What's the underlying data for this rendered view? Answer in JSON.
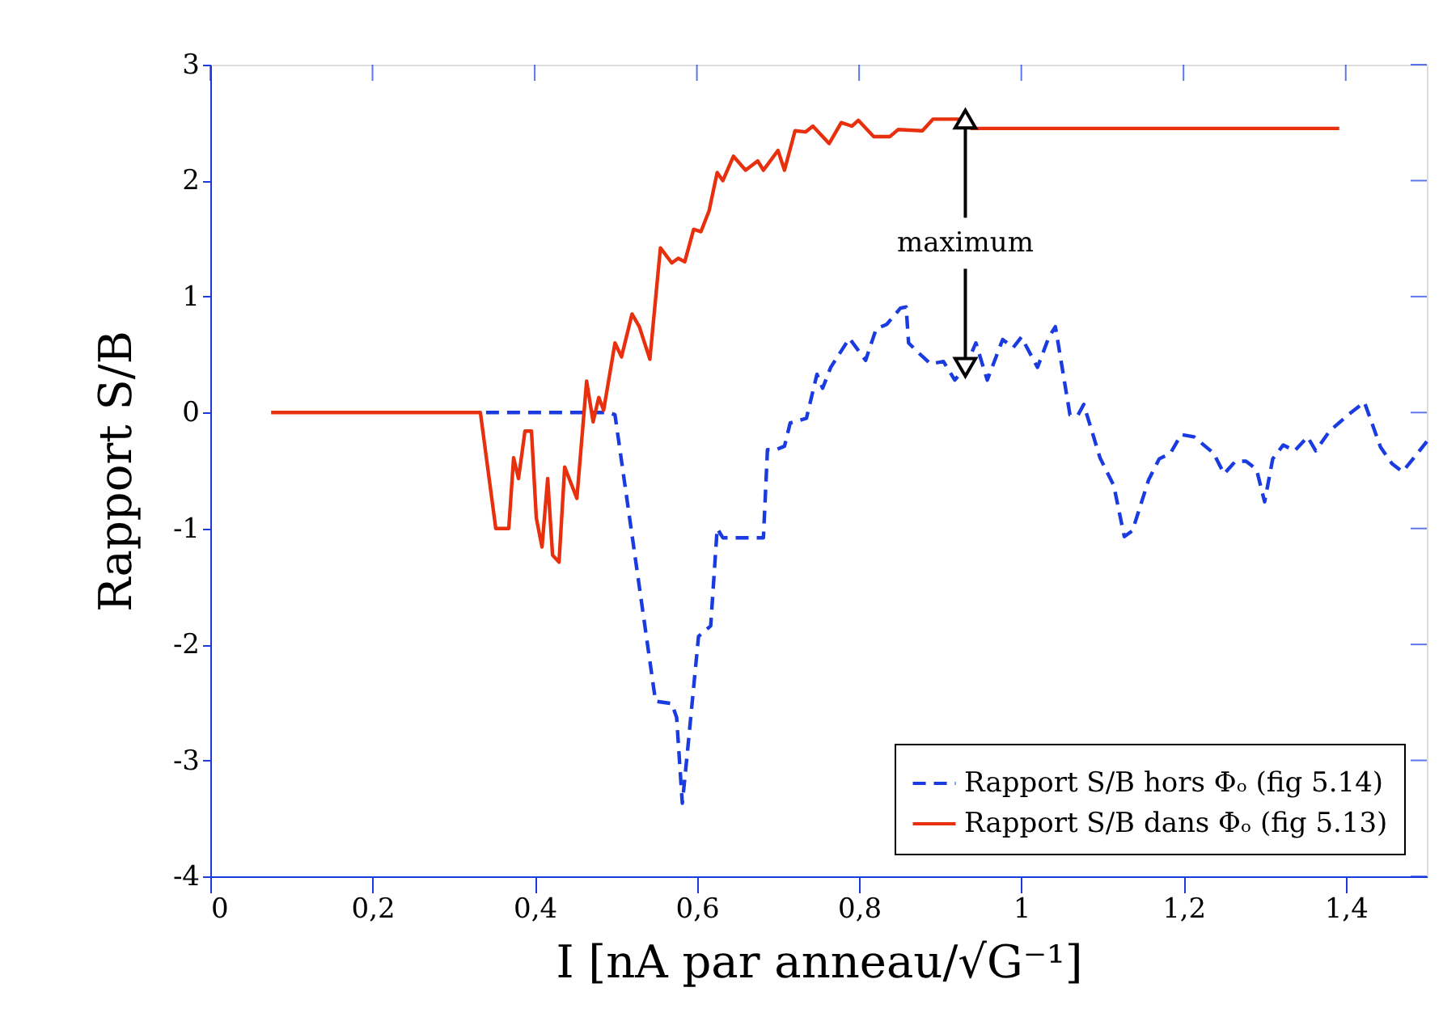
{
  "chart_data": {
    "type": "line",
    "xlabel": "I [nA par anneau/√G⁻¹]",
    "ylabel": "Rapport S/B",
    "xlim": [
      0,
      1.5
    ],
    "ylim": [
      -4,
      3
    ],
    "xticks": [
      0,
      {
        "value": 0.2,
        "label": "0,2"
      },
      {
        "value": 0.4,
        "label": "0,4"
      },
      {
        "value": 0.6,
        "label": "0,6"
      },
      {
        "value": 0.8,
        "label": "0,8"
      },
      1,
      {
        "value": 1.2,
        "label": "1,2"
      },
      {
        "value": 1.4,
        "label": "1,4"
      }
    ],
    "yticks": [
      -4,
      -3,
      -2,
      -1,
      0,
      1,
      2,
      3
    ],
    "grid": false,
    "legend": "bottom right",
    "marker": "none",
    "annotations": [
      {
        "text": "maximum",
        "x": 0.931,
        "y": 2.53
      }
    ],
    "series": [
      {
        "name": "Rapport S/B hors Φₒ (fig 5.14)",
        "color": "#1a3be0",
        "line_style": "dashed",
        "x": [
          0.34,
          0.492,
          0.499,
          0.549,
          0.569,
          0.575,
          0.582,
          0.588,
          0.602,
          0.617,
          0.625,
          0.632,
          0.682,
          0.687,
          0.698,
          0.708,
          0.715,
          0.735,
          0.748,
          0.755,
          0.765,
          0.788,
          0.808,
          0.821,
          0.834,
          0.851,
          0.858,
          0.861,
          0.874,
          0.888,
          0.904,
          0.918,
          0.931,
          0.944,
          0.958,
          0.977,
          0.99,
          1.0,
          1.02,
          1.034,
          1.042,
          1.047,
          1.06,
          1.07,
          1.077,
          1.097,
          1.114,
          1.127,
          1.137,
          1.157,
          1.17,
          1.184,
          1.197,
          1.213,
          1.237,
          1.25,
          1.264,
          1.277,
          1.29,
          1.3,
          1.31,
          1.323,
          1.337,
          1.353,
          1.363,
          1.38,
          1.403,
          1.423,
          1.443,
          1.457,
          1.47,
          1.483,
          1.5
        ],
        "values": [
          0,
          0,
          -0.02,
          -2.49,
          -2.51,
          -2.63,
          -3.37,
          -2.95,
          -1.93,
          -1.84,
          -1.0,
          -1.08,
          -1.08,
          -0.32,
          -0.32,
          -0.29,
          -0.09,
          -0.05,
          0.33,
          0.21,
          0.39,
          0.64,
          0.45,
          0.72,
          0.76,
          0.9,
          0.91,
          0.6,
          0.51,
          0.42,
          0.44,
          0.28,
          0.39,
          0.6,
          0.28,
          0.63,
          0.56,
          0.65,
          0.39,
          0.65,
          0.74,
          0.53,
          -0.02,
          -0.02,
          0.07,
          -0.39,
          -0.63,
          -1.07,
          -1.02,
          -0.58,
          -0.4,
          -0.35,
          -0.19,
          -0.21,
          -0.35,
          -0.53,
          -0.42,
          -0.42,
          -0.49,
          -0.77,
          -0.4,
          -0.28,
          -0.33,
          -0.21,
          -0.33,
          -0.16,
          -0.02,
          0.09,
          -0.3,
          -0.44,
          -0.51,
          -0.4,
          -0.25
        ]
      },
      {
        "name": "Rapport S/B dans Φₒ (fig 5.13)",
        "color": "#e8300e",
        "line_style": "solid",
        "x": [
          0.075,
          0.333,
          0.352,
          0.368,
          0.374,
          0.38,
          0.388,
          0.396,
          0.402,
          0.409,
          0.416,
          0.422,
          0.43,
          0.437,
          0.452,
          0.464,
          0.472,
          0.479,
          0.485,
          0.499,
          0.507,
          0.52,
          0.529,
          0.542,
          0.555,
          0.569,
          0.577,
          0.585,
          0.596,
          0.605,
          0.615,
          0.625,
          0.632,
          0.645,
          0.66,
          0.675,
          0.682,
          0.7,
          0.708,
          0.721,
          0.734,
          0.743,
          0.763,
          0.778,
          0.791,
          0.799,
          0.818,
          0.838,
          0.848,
          0.878,
          0.891,
          0.931,
          0.939,
          1.392
        ],
        "values": [
          0,
          0,
          -1.0,
          -1.0,
          -0.39,
          -0.57,
          -0.16,
          -0.16,
          -0.91,
          -1.16,
          -0.57,
          -1.23,
          -1.29,
          -0.47,
          -0.74,
          0.27,
          -0.08,
          0.13,
          0.02,
          0.6,
          0.48,
          0.85,
          0.74,
          0.46,
          1.42,
          1.29,
          1.33,
          1.3,
          1.58,
          1.56,
          1.74,
          2.07,
          2.0,
          2.21,
          2.09,
          2.17,
          2.09,
          2.26,
          2.09,
          2.43,
          2.42,
          2.47,
          2.32,
          2.5,
          2.47,
          2.52,
          2.38,
          2.38,
          2.44,
          2.43,
          2.53,
          2.53,
          2.45,
          2.45
        ]
      }
    ]
  }
}
